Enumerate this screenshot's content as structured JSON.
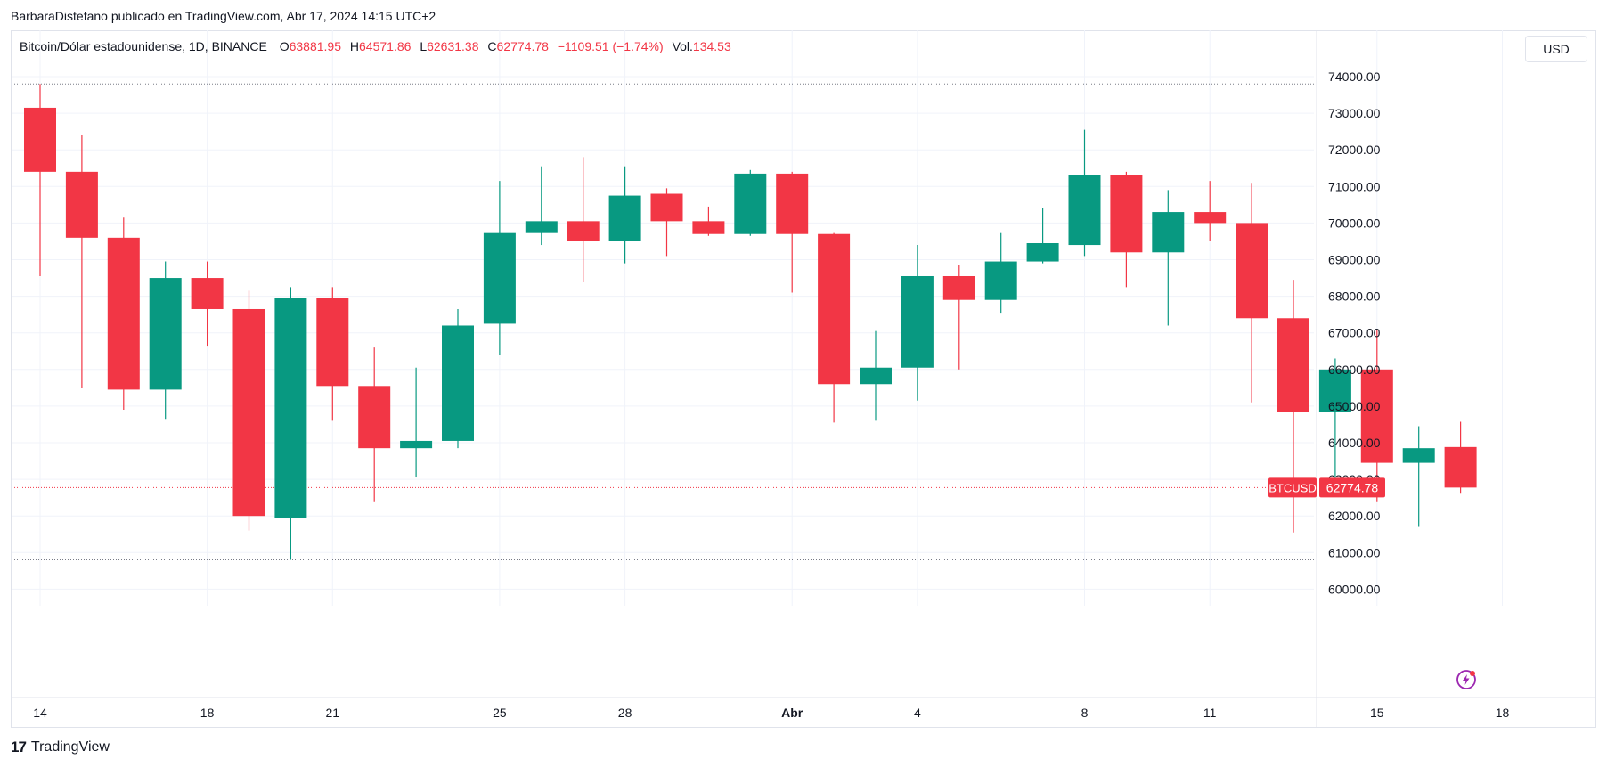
{
  "caption": "BarbaraDistefano publicado en TradingView.com, Abr 17, 2024 14:15 UTC+2",
  "legend": {
    "symbol": "Bitcoin/Dólar estadounidense, 1D, BINANCE",
    "o_label": "O",
    "o_value": "63881.95",
    "h_label": "H",
    "h_value": "64571.86",
    "l_label": "L",
    "l_value": "62631.38",
    "c_label": "C",
    "c_value": "62774.78",
    "change": "−1109.51 (−1.74%)",
    "vol_label": "Vol.",
    "vol_value": "134.53"
  },
  "currency_button": "USD",
  "price_tag": {
    "ticker": "BTCUSD",
    "price": "62774.78"
  },
  "footer": {
    "logo": "17",
    "brand": "TradingView"
  },
  "colors": {
    "up": "#089981",
    "down": "#f23645",
    "grid": "#f0f3fa",
    "text": "#131722"
  },
  "chart_data": {
    "type": "candlestick",
    "x_tick_labels": [
      {
        "label": "14",
        "index": 0
      },
      {
        "label": "18",
        "index": 4
      },
      {
        "label": "21",
        "index": 7
      },
      {
        "label": "25",
        "index": 11
      },
      {
        "label": "28",
        "index": 14
      },
      {
        "label": "Abr",
        "index": 18
      },
      {
        "label": "4",
        "index": 21
      },
      {
        "label": "8",
        "index": 25
      },
      {
        "label": "11",
        "index": 28
      },
      {
        "label": "15",
        "index": 32
      },
      {
        "label": "18",
        "index": 35
      }
    ],
    "y_ticks": [
      "60000.00",
      "61000.00",
      "62000.00",
      "63000.00",
      "64000.00",
      "65000.00",
      "66000.00",
      "67000.00",
      "68000.00",
      "69000.00",
      "70000.00",
      "71000.00",
      "72000.00",
      "73000.00",
      "74000.00"
    ],
    "ylim": [
      59500,
      75000
    ],
    "high_line": 73800,
    "low_line": 60800,
    "last_price": 62774.78,
    "candles": [
      {
        "o": 73150,
        "h": 73800,
        "l": 68550,
        "c": 71400
      },
      {
        "o": 71400,
        "h": 72400,
        "l": 65500,
        "c": 69600
      },
      {
        "o": 69600,
        "h": 70150,
        "l": 64900,
        "c": 65450
      },
      {
        "o": 65450,
        "h": 68950,
        "l": 64650,
        "c": 68500
      },
      {
        "o": 68500,
        "h": 68950,
        "l": 66650,
        "c": 67650
      },
      {
        "o": 67650,
        "h": 68150,
        "l": 61600,
        "c": 62000
      },
      {
        "o": 61950,
        "h": 68250,
        "l": 60800,
        "c": 67950
      },
      {
        "o": 67950,
        "h": 68250,
        "l": 64600,
        "c": 65550
      },
      {
        "o": 65550,
        "h": 66600,
        "l": 62400,
        "c": 63850
      },
      {
        "o": 63850,
        "h": 66050,
        "l": 63050,
        "c": 64050
      },
      {
        "o": 64050,
        "h": 67650,
        "l": 63850,
        "c": 67200
      },
      {
        "o": 67250,
        "h": 71150,
        "l": 66400,
        "c": 69750
      },
      {
        "o": 69750,
        "h": 71550,
        "l": 69400,
        "c": 70050
      },
      {
        "o": 70050,
        "h": 71800,
        "l": 68400,
        "c": 69500
      },
      {
        "o": 69500,
        "h": 71550,
        "l": 68900,
        "c": 70750
      },
      {
        "o": 70800,
        "h": 70950,
        "l": 69100,
        "c": 70050
      },
      {
        "o": 70050,
        "h": 70450,
        "l": 69650,
        "c": 69700
      },
      {
        "o": 69700,
        "h": 71450,
        "l": 69650,
        "c": 71350
      },
      {
        "o": 71350,
        "h": 71400,
        "l": 68100,
        "c": 69700
      },
      {
        "o": 69700,
        "h": 69750,
        "l": 64550,
        "c": 65600
      },
      {
        "o": 65600,
        "h": 67050,
        "l": 64600,
        "c": 66050
      },
      {
        "o": 66050,
        "h": 69400,
        "l": 65150,
        "c": 68550
      },
      {
        "o": 68550,
        "h": 68850,
        "l": 66000,
        "c": 67900
      },
      {
        "o": 67900,
        "h": 69750,
        "l": 67550,
        "c": 68950
      },
      {
        "o": 68950,
        "h": 70400,
        "l": 68900,
        "c": 69450
      },
      {
        "o": 69400,
        "h": 72550,
        "l": 69100,
        "c": 71300
      },
      {
        "o": 71300,
        "h": 71400,
        "l": 68250,
        "c": 69200
      },
      {
        "o": 69200,
        "h": 70900,
        "l": 67200,
        "c": 70300
      },
      {
        "o": 70300,
        "h": 71150,
        "l": 69500,
        "c": 70000
      },
      {
        "o": 70000,
        "h": 71100,
        "l": 65100,
        "c": 67400
      },
      {
        "o": 67400,
        "h": 68450,
        "l": 61550,
        "c": 64850
      },
      {
        "o": 64850,
        "h": 66300,
        "l": 62650,
        "c": 66000
      },
      {
        "o": 66000,
        "h": 67100,
        "l": 62400,
        "c": 63450
      },
      {
        "o": 63450,
        "h": 64450,
        "l": 61700,
        "c": 63850
      },
      {
        "o": 63881.95,
        "h": 64571.86,
        "l": 62631.38,
        "c": 62774.78
      }
    ]
  }
}
